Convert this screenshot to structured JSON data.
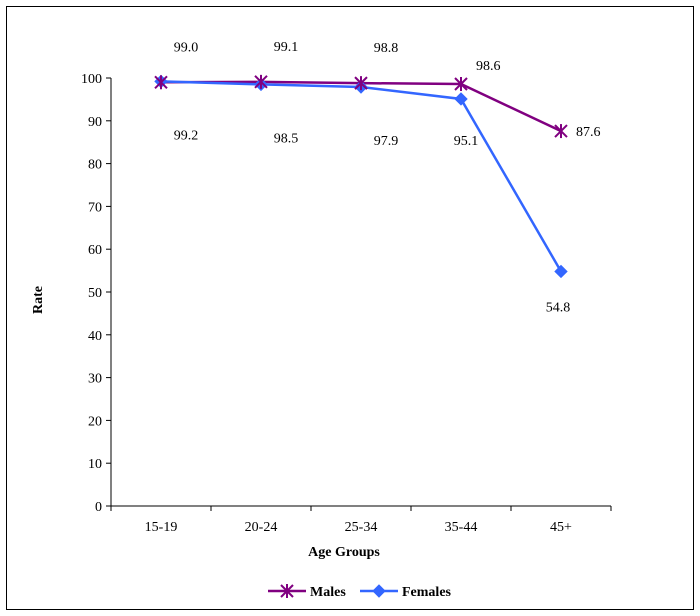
{
  "chart_data": {
    "type": "line",
    "xlabel": "Age Groups",
    "ylabel": "Rate",
    "categories": [
      "15-19",
      "20-24",
      "25-34",
      "35-44",
      "45+"
    ],
    "ylim": [
      0,
      100
    ],
    "yticks": [
      0,
      10,
      20,
      30,
      40,
      50,
      60,
      70,
      80,
      90,
      100
    ],
    "series": [
      {
        "name": "Males",
        "values": [
          99.0,
          99.1,
          98.8,
          98.6,
          87.6
        ],
        "labels": [
          "99.0",
          "99.1",
          "98.8",
          "98.6",
          "87.6"
        ],
        "color": "#800080",
        "marker": "star"
      },
      {
        "name": "Females",
        "values": [
          99.2,
          98.5,
          97.9,
          95.1,
          54.8
        ],
        "labels": [
          "99.2",
          "98.5",
          "97.9",
          "95.1",
          "54.8"
        ],
        "color": "#3366FF",
        "marker": "diamond"
      }
    ],
    "grid": false,
    "legend": "bottom"
  }
}
